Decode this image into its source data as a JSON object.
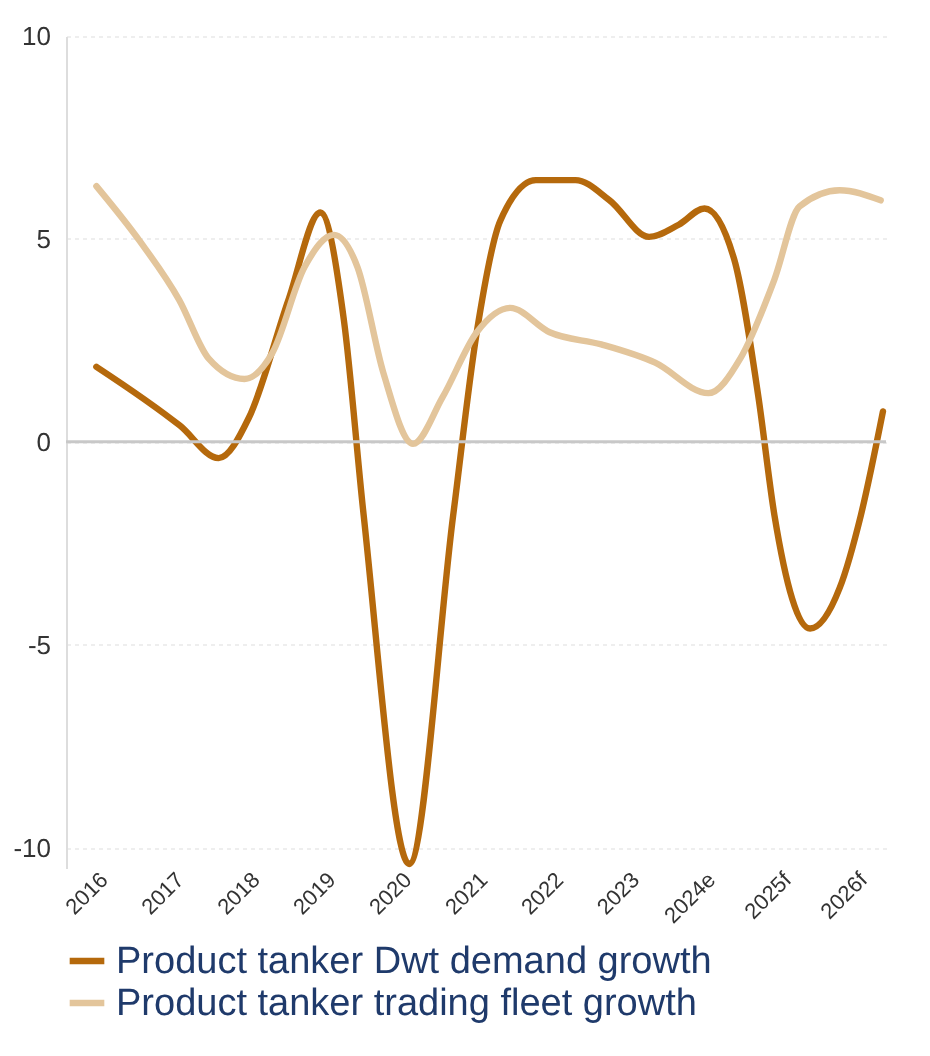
{
  "chart_data": {
    "type": "line",
    "xlim": [
      2015.5,
      2026.3
    ],
    "ylim": [
      -10.5,
      10
    ],
    "yticks": [
      -10,
      -5,
      0,
      5,
      10
    ],
    "xticks": [
      2016,
      2017,
      2018,
      2019,
      2020,
      2021,
      2022,
      2023,
      {
        "value": 2024,
        "label": "2024e"
      },
      {
        "value": 2025,
        "label": "2025f"
      },
      {
        "value": 2026,
        "label": "2026f"
      }
    ],
    "grid": "y",
    "legend": "bottom",
    "ref_lines": [
      {
        "axis": "y",
        "value": 0,
        "color": "#c8c8c8"
      }
    ],
    "series": [
      {
        "name": "Product tanker Dwt demand growth",
        "color": "#b5690c",
        "x": [
          2015.9,
          2017.0,
          2017.51,
          2017.91,
          2018.43,
          2018.85,
          2019.16,
          2019.42,
          2020.02,
          2020.6,
          2020.91,
          2021.22,
          2021.69,
          2022.21,
          2022.66,
          2023.18,
          2023.57,
          2023.91,
          2024.3,
          2024.62,
          2024.83,
          2025.3,
          2025.69,
          2025.97,
          2026.26
        ],
        "values": [
          1.85,
          0.4,
          -0.4,
          0.6,
          3.5,
          5.65,
          3.0,
          -1.8,
          -10.4,
          -1.8,
          2.7,
          5.45,
          6.45,
          6.45,
          5.95,
          5.05,
          5.35,
          5.75,
          4.5,
          1.1,
          -1.8,
          -4.6,
          -3.6,
          -1.8,
          0.75
        ]
      },
      {
        "name": "Product tanker trading fleet growth",
        "color": "#e3c59b",
        "x": [
          2015.9,
          2016.47,
          2016.99,
          2017.38,
          2017.85,
          2018.22,
          2018.64,
          2019.03,
          2019.34,
          2019.68,
          2020.07,
          2020.46,
          2020.91,
          2021.35,
          2021.87,
          2022.55,
          2023.26,
          2023.96,
          2024.38,
          2024.83,
          2025.16,
          2025.69,
          2026.23
        ],
        "values": [
          6.3,
          4.95,
          3.5,
          2.05,
          1.55,
          2.2,
          4.3,
          5.1,
          4.3,
          1.7,
          -0.05,
          1.1,
          2.7,
          3.3,
          2.7,
          2.4,
          1.95,
          1.2,
          2.05,
          4.0,
          5.8,
          6.2,
          5.95
        ]
      }
    ]
  }
}
